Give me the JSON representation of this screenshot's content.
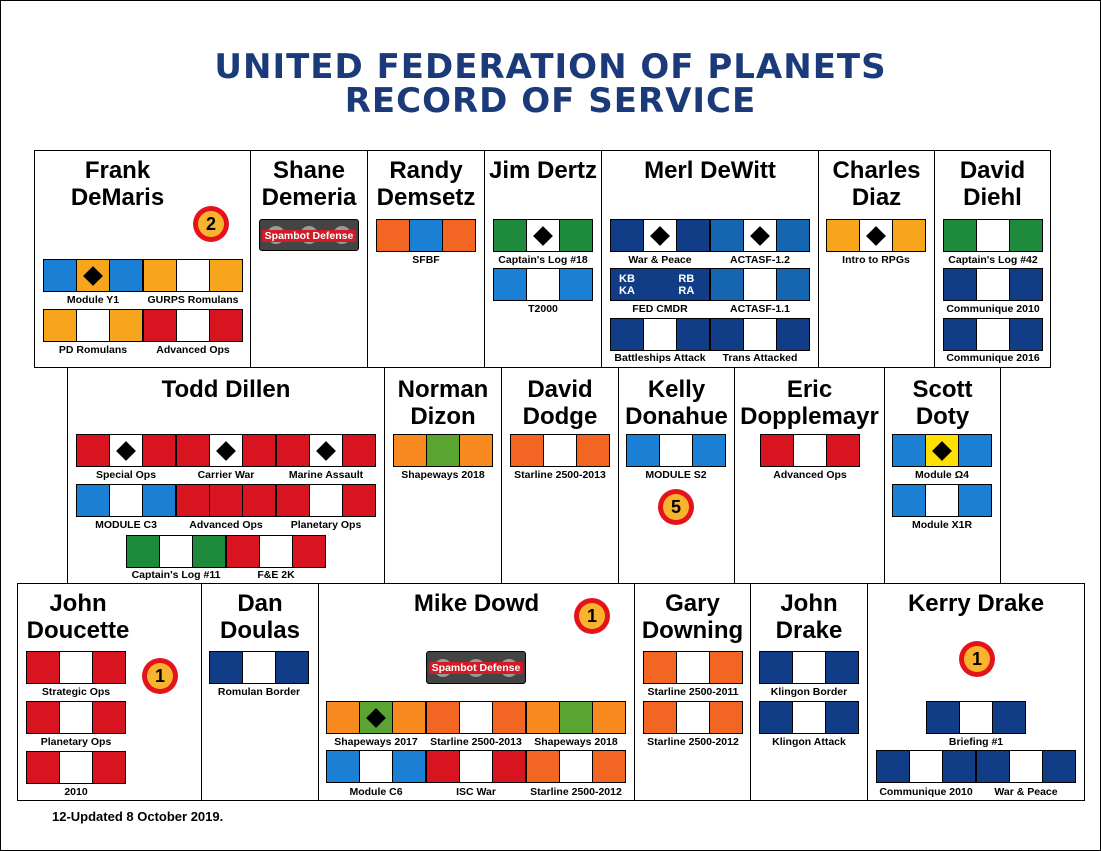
{
  "title_line1": "UNITED FEDERATION OF PLANETS",
  "title_line2": "RECORD OF SERVICE",
  "footer": "12-Updated 8 October 2019.",
  "colors": {
    "red": "#d7141f",
    "blue": "#1b7fd4",
    "navy": "#103d85",
    "orange": "#f26522",
    "amber": "#f7a51c",
    "green": "#1e8a3c",
    "lime": "#5aa532",
    "white": "#ffffff",
    "title": "#1b3a7a"
  },
  "spambot_text": "Spambot Defense",
  "people": {
    "frank": {
      "name": "Frank DeMaris",
      "badge": "2",
      "r1": "Module Y1",
      "r2": "GURPS Romulans",
      "r3": "PD Romulans",
      "r4": "Advanced Ops"
    },
    "shane": {
      "name": "Shane Demeria"
    },
    "randy": {
      "name": "Randy Demsetz",
      "r1": "SFBF"
    },
    "jim": {
      "name": "Jim Dertz",
      "r1": "Captain's Log #18",
      "r2": "T2000"
    },
    "merl": {
      "name": "Merl DeWitt",
      "r1": "War & Peace",
      "r2": "ACTASF-1.2",
      "r3": "FED CMDR",
      "r4": "ACTASF-1.1",
      "r5": "Battleships Attack",
      "r6": "Trans Attacked",
      "kb": "KB",
      "ka": "KA",
      "rb": "RB",
      "ra": "RA"
    },
    "charles": {
      "name": "Charles Diaz",
      "r1": "Intro to RPGs"
    },
    "david_diehl": {
      "name": "David Diehl",
      "r1": "Captain's Log #42",
      "r2": "Communique 2010",
      "r3": "Communique 2016"
    },
    "todd": {
      "name": "Todd Dillen",
      "r1": "Special Ops",
      "r2": "Carrier War",
      "r3": "Marine Assault",
      "r4": "MODULE C3",
      "r5": "Advanced Ops",
      "r6": "Planetary Ops",
      "r7": "Captain's Log #11",
      "r8": "F&E 2K"
    },
    "norman": {
      "name": "Norman Dizon",
      "r1": "Shapeways 2018"
    },
    "david_dodge": {
      "name": "David Dodge",
      "r1": "Starline 2500-2013"
    },
    "kelly": {
      "name": "Kelly Donahue",
      "r1": "MODULE S2",
      "badge": "5"
    },
    "eric": {
      "name": "Eric Dopplemayr",
      "r1": "Advanced Ops"
    },
    "scott": {
      "name": "Scott Doty",
      "r1": "Module Ω4",
      "r2": "Module X1R"
    },
    "john_doucette": {
      "name": "John Doucette",
      "badge": "1",
      "r1": "Strategic Ops",
      "r2": "Planetary Ops",
      "r3": "2010"
    },
    "dan": {
      "name": "Dan Doulas",
      "r1": "Romulan Border"
    },
    "mike": {
      "name": "Mike Dowd",
      "badge": "1",
      "r1": "Shapeways 2017",
      "r2": "Starline 2500-2013",
      "r3": "Shapeways 2018",
      "r4": "Module C6",
      "r5": "ISC War",
      "r6": "Starline 2500-2012"
    },
    "gary": {
      "name": "Gary Downing",
      "r1": "Starline 2500-2011",
      "r2": "Starline 2500-2012"
    },
    "john_drake": {
      "name": "John Drake",
      "r1": "Klingon Border",
      "r2": "Klingon Attack"
    },
    "kerry": {
      "name": "Kerry Drake",
      "badge": "1",
      "r1": "Briefing #1",
      "r2": "Communique 2010",
      "r3": "War & Peace"
    }
  }
}
